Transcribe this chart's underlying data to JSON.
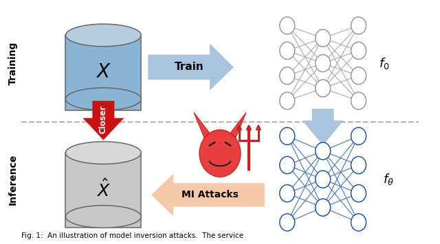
{
  "bg_color": "#ffffff",
  "training_label": "Training",
  "inference_label": "Inference",
  "train_arrow_label": "Train",
  "mi_attacks_label": "MI Attacks",
  "closer_label": "Closer",
  "f0_label": "$f_0$",
  "ftheta_label": "$f_{\\theta}$",
  "cyl_blue_top": "#b8ccdf",
  "cyl_blue_body": "#8ab4d4",
  "cyl_gray_top": "#d8d8d8",
  "cyl_gray_body": "#c8c8c8",
  "nn_gray_line": "#aaaaaa",
  "nn_gray_node": "#999999",
  "nn_blue_line": "#4477bb",
  "nn_blue_node": "#2255aa",
  "arrow_blue_fill": "#aac4e0",
  "arrow_orange_fill": "#f5c8a8",
  "arrow_red_fill": "#cc1111",
  "dashed_color": "#aaaaaa",
  "text_color": "#111111"
}
